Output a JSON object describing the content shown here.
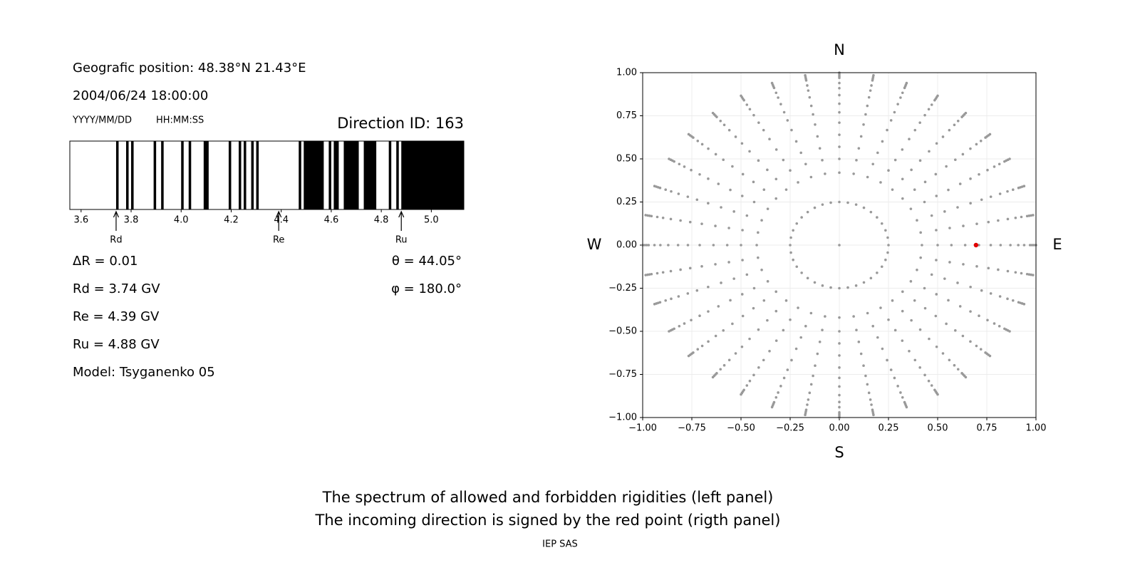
{
  "info": {
    "position": "Geografic position: 48.38°N 21.43°E",
    "datetime": "2004/06/24 18:00:00",
    "date_format": "YYYY/MM/DD",
    "time_format": "HH:MM:SS",
    "delta_r": "ΔR = 0.01",
    "rd": "Rd = 3.74 GV",
    "re": "Re = 4.39 GV",
    "ru": "Ru = 4.88 GV",
    "model": "Model: Tsyganenko 05",
    "theta": "θ = 44.05°",
    "phi": "φ = 180.0°"
  },
  "chart_data": [
    {
      "type": "spectrum",
      "title": "Direction ID: 163",
      "xlim": [
        3.555,
        5.13
      ],
      "xticks": [
        3.6,
        3.8,
        {
          "value": 4.0,
          "label": "4.0"
        },
        4.2,
        4.4,
        4.6,
        4.8,
        {
          "value": 5.0,
          "label": "5.0"
        }
      ],
      "color": "#000000",
      "forbidden_bands": [
        [
          3.74,
          3.75
        ],
        [
          3.78,
          3.79
        ],
        [
          3.8,
          3.81
        ],
        [
          3.89,
          3.9
        ],
        [
          3.92,
          3.93
        ],
        [
          4.0,
          4.01
        ],
        [
          4.03,
          4.04
        ],
        [
          4.09,
          4.11
        ],
        [
          4.19,
          4.2
        ],
        [
          4.23,
          4.24
        ],
        [
          4.25,
          4.26
        ],
        [
          4.28,
          4.29
        ],
        [
          4.3,
          4.31
        ],
        [
          4.47,
          4.48
        ],
        [
          4.49,
          4.57
        ],
        [
          4.59,
          4.6
        ],
        [
          4.61,
          4.63
        ],
        [
          4.65,
          4.71
        ],
        [
          4.73,
          4.78
        ],
        [
          4.83,
          4.84
        ],
        [
          4.86,
          4.87
        ],
        [
          4.88,
          5.13
        ]
      ],
      "markers": [
        {
          "label": "Rd",
          "value": 3.74
        },
        {
          "label": "Re",
          "value": 4.39
        },
        {
          "label": "Ru",
          "value": 4.88
        }
      ]
    },
    {
      "type": "scatter",
      "xlim": [
        -1,
        1
      ],
      "ylim": [
        -1,
        1
      ],
      "xticks": [
        {
          "value": -1,
          "label": "−1.00"
        },
        {
          "value": -0.75,
          "label": "−0.75"
        },
        {
          "value": -0.5,
          "label": "−0.50"
        },
        {
          "value": -0.25,
          "label": "−0.25"
        },
        {
          "value": 0,
          "label": "0.00"
        },
        {
          "value": 0.25,
          "label": "0.25"
        },
        {
          "value": 0.5,
          "label": "0.50"
        },
        {
          "value": 0.75,
          "label": "0.75"
        },
        {
          "value": 1,
          "label": "1.00"
        }
      ],
      "yticks": [
        {
          "value": -1,
          "label": "−1.00"
        },
        {
          "value": -0.75,
          "label": "−0.75"
        },
        {
          "value": -0.5,
          "label": "−0.50"
        },
        {
          "value": -0.25,
          "label": "−0.25"
        },
        {
          "value": 0,
          "label": "0.00"
        },
        {
          "value": 0.25,
          "label": "0.25"
        },
        {
          "value": 0.5,
          "label": "0.50"
        },
        {
          "value": 0.75,
          "label": "0.75"
        },
        {
          "value": 1,
          "label": "1.00"
        }
      ],
      "grid": true,
      "compass": {
        "top": "N",
        "bottom": "S",
        "left": "W",
        "right": "E"
      },
      "grid_color": "#999999",
      "azimuths": [
        0,
        10,
        20,
        30,
        40,
        50,
        60,
        70,
        80,
        90,
        100,
        110,
        120,
        130,
        140,
        150,
        160,
        170,
        180,
        190,
        200,
        210,
        220,
        230,
        240,
        250,
        260,
        270,
        280,
        290,
        300,
        310,
        320,
        330,
        340,
        350
      ],
      "ring_radius": 0.25,
      "spoke_radii": [
        0.42,
        0.5,
        0.57,
        0.64,
        0.71,
        0.77,
        0.82,
        0.87,
        0.91,
        0.94,
        0.97,
        0.98,
        0.99,
        1.0
      ],
      "center": {
        "x": 0,
        "y": 0
      },
      "point": {
        "x": 0.695,
        "y": 0,
        "color": "#e00000"
      }
    }
  ],
  "captions": {
    "line1": "The spectrum of allowed and forbidden rigidities (left panel)",
    "line2": "The incoming direction is signed by the red point (rigth panel)",
    "credit": "IEP SAS"
  }
}
